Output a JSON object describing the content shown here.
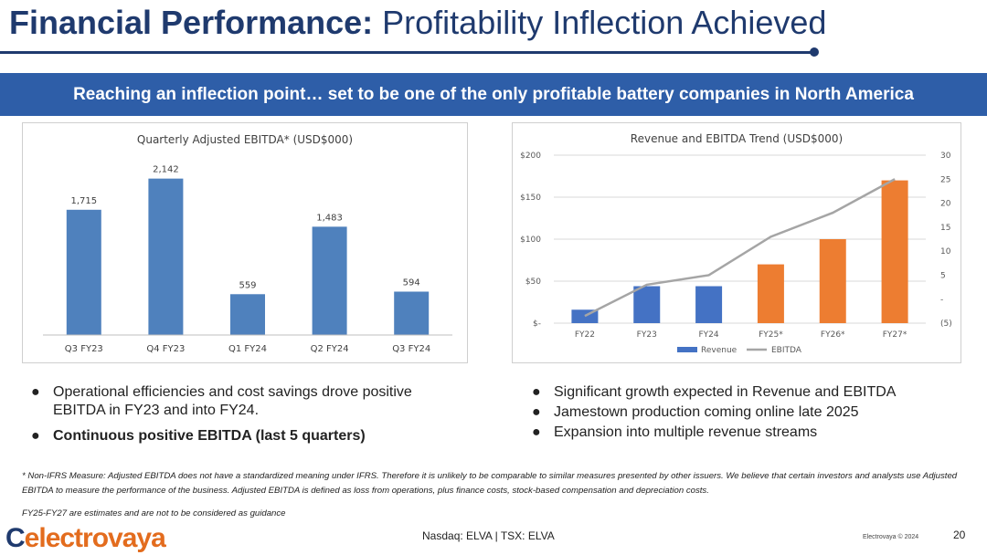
{
  "header": {
    "title_bold": "Financial Performance:",
    "title_rest": "Profitability Inflection Achieved"
  },
  "banner": "Reaching an inflection point… set to be one of the only profitable battery companies in North America",
  "chart_data": [
    {
      "type": "bar",
      "title": "Quarterly Adjusted EBITDA* (USD$000)",
      "categories": [
        "Q3 FY23",
        "Q4 FY23",
        "Q1 FY24",
        "Q2 FY24",
        "Q3 FY24"
      ],
      "values": [
        1715,
        2142,
        559,
        1483,
        594
      ],
      "data_labels": [
        "1,715",
        "2,142",
        "559",
        "1,483",
        "594"
      ],
      "ylim": [
        0,
        2500
      ],
      "colors": {
        "bar": "#4f81bd"
      }
    },
    {
      "type": "bar+line",
      "title": "Revenue and EBITDA Trend (USD$000)",
      "categories": [
        "FY22",
        "FY23",
        "FY24",
        "FY25*",
        "FY26*",
        "FY27*"
      ],
      "series": [
        {
          "name": "Revenue",
          "type": "bar",
          "axis": "left",
          "values": [
            16,
            44,
            44,
            70,
            100,
            170
          ],
          "colors": [
            "#4472c4",
            "#4472c4",
            "#4472c4",
            "#ed7d31",
            "#ed7d31",
            "#ed7d31"
          ]
        },
        {
          "name": "EBITDA",
          "type": "line",
          "axis": "right",
          "values": [
            -3.5,
            3,
            5,
            13,
            18,
            25
          ],
          "color": "#a5a5a5"
        }
      ],
      "y_left": {
        "ticks": [
          0,
          50,
          100,
          150,
          200
        ],
        "tick_labels": [
          "$-",
          "$50",
          "$100",
          "$150",
          "$200"
        ],
        "ylim": [
          0,
          200
        ]
      },
      "y_right": {
        "ticks": [
          -5,
          0,
          5,
          10,
          15,
          20,
          25,
          30
        ],
        "tick_labels": [
          "(5)",
          "-",
          "5",
          "10",
          "15",
          "20",
          "25",
          "30"
        ],
        "ylim": [
          -5,
          30
        ]
      },
      "legend": "bottom"
    }
  ],
  "left_bullets": [
    "Operational efficiencies and cost savings drove positive EBITDA in FY23 and into FY24.",
    "Continuous positive EBITDA (last 5 quarters)"
  ],
  "right_bullets": [
    "Significant growth expected in Revenue and EBITDA",
    "Jamestown production coming online late 2025",
    "Expansion into multiple revenue streams"
  ],
  "footnote": "* Non-IFRS Measure: Adjusted EBITDA does not have a standardized meaning under IFRS. Therefore it is unlikely to be comparable to similar measures presented by other issuers. We believe that certain investors and analysts use Adjusted EBITDA to measure the performance of the business. Adjusted EBITDA is defined as loss from operations,  plus finance costs, stock-based compensation and depreciation costs.",
  "footnote2": "FY25-FY27 are estimates and are not to be considered as guidance",
  "footer": {
    "logo": "electrovaya",
    "ticker": "Nasdaq: ELVA | TSX: ELVA",
    "copyright": "Electrovaya © 2024",
    "page": "20"
  }
}
